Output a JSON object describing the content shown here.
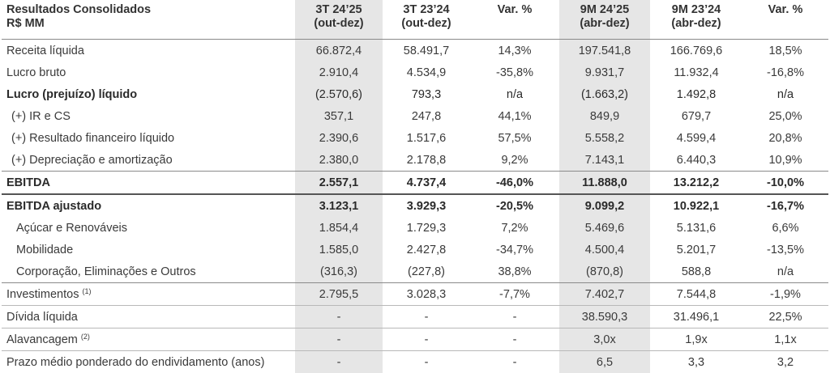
{
  "header": {
    "title_line1": "Resultados Consolidados",
    "title_line2": "R$ MM",
    "col1_line1": "3T 24’25",
    "col1_line2": "(out-dez)",
    "col2_line1": "3T 23’24",
    "col2_line2": "(out-dez)",
    "col3": "Var. %",
    "col4_line1": "9M 24’25",
    "col4_line2": "(abr-dez)",
    "col5_line1": "9M 23’24",
    "col5_line2": "(abr-dez)",
    "col6": "Var. %"
  },
  "rows": [
    {
      "label": "Receita líquida",
      "sup": "",
      "v": [
        "66.872,4",
        "58.491,7",
        "14,3%",
        "197.541,8",
        "166.769,6",
        "18,5%"
      ]
    },
    {
      "label": "Lucro bruto",
      "sup": "",
      "v": [
        "2.910,4",
        "4.534,9",
        "-35,8%",
        "9.931,7",
        "11.932,4",
        "-16,8%"
      ]
    },
    {
      "label": "Lucro (prejuízo) líquido",
      "sup": "",
      "v": [
        "(2.570,6)",
        "793,3",
        "n/a",
        "(1.663,2)",
        "1.492,8",
        "n/a"
      ]
    },
    {
      "label": "(+) IR e CS",
      "sup": "",
      "v": [
        "357,1",
        "247,8",
        "44,1%",
        "849,9",
        "679,7",
        "25,0%"
      ]
    },
    {
      "label": "(+) Resultado financeiro líquido",
      "sup": "",
      "v": [
        "2.390,6",
        "1.517,6",
        "57,5%",
        "5.558,2",
        "4.599,4",
        "20,8%"
      ]
    },
    {
      "label": "(+) Depreciação e amortização",
      "sup": "",
      "v": [
        "2.380,0",
        "2.178,8",
        "9,2%",
        "7.143,1",
        "6.440,3",
        "10,9%"
      ]
    },
    {
      "label": "EBITDA",
      "sup": "",
      "v": [
        "2.557,1",
        "4.737,4",
        "-46,0%",
        "11.888,0",
        "13.212,2",
        "-10,0%"
      ]
    },
    {
      "label": "EBITDA ajustado",
      "sup": "",
      "v": [
        "3.123,1",
        "3.929,3",
        "-20,5%",
        "9.099,2",
        "10.922,1",
        "-16,7%"
      ]
    },
    {
      "label": "Açúcar e Renováveis",
      "sup": "",
      "v": [
        "1.854,4",
        "1.729,3",
        "7,2%",
        "5.469,6",
        "5.131,6",
        "6,6%"
      ]
    },
    {
      "label": "Mobilidade",
      "sup": "",
      "v": [
        "1.585,0",
        "2.427,8",
        "-34,7%",
        "4.500,4",
        "5.201,7",
        "-13,5%"
      ]
    },
    {
      "label": "Corporação, Eliminações e Outros",
      "sup": "",
      "v": [
        "(316,3)",
        "(227,8)",
        "38,8%",
        "(870,8)",
        "588,8",
        "n/a"
      ]
    },
    {
      "label": "Investimentos",
      "sup": "(1)",
      "v": [
        "2.795,5",
        "3.028,3",
        "-7,7%",
        "7.402,7",
        "7.544,8",
        "-1,9%"
      ]
    },
    {
      "label": "Dívida líquida",
      "sup": "",
      "v": [
        "-",
        "-",
        "-",
        "38.590,3",
        "31.496,1",
        "22,5%"
      ]
    },
    {
      "label": "Alavancagem",
      "sup": "(2)",
      "v": [
        "-",
        "-",
        "-",
        "3,0x",
        "1,9x",
        "1,1x"
      ]
    },
    {
      "label": "Prazo médio ponderado do endividamento (anos)",
      "sup": "",
      "v": [
        "-",
        "-",
        "-",
        "6,5",
        "3,3",
        "3,2"
      ]
    }
  ]
}
